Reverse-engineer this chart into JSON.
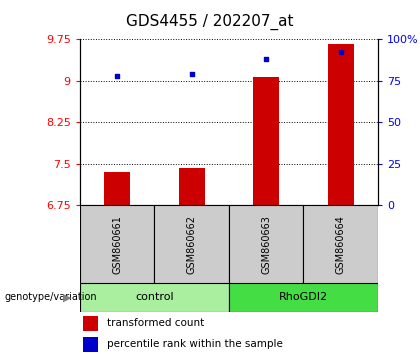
{
  "title": "GDS4455 / 202207_at",
  "samples": [
    "GSM860661",
    "GSM860662",
    "GSM860663",
    "GSM860664"
  ],
  "bar_values": [
    7.35,
    7.42,
    9.07,
    9.65
  ],
  "percentile_values": [
    78,
    79,
    88,
    92
  ],
  "ylim_left": [
    6.75,
    9.75
  ],
  "ylim_right": [
    0,
    100
  ],
  "yticks_left": [
    6.75,
    7.5,
    8.25,
    9.0,
    9.75
  ],
  "yticks_right": [
    0,
    25,
    50,
    75,
    100
  ],
  "ytick_labels_left": [
    "6.75",
    "7.5",
    "8.25",
    "9",
    "9.75"
  ],
  "ytick_labels_right": [
    "0",
    "25",
    "50",
    "75",
    "100%"
  ],
  "bar_color": "#cc0000",
  "dot_color": "#0000cc",
  "bar_width": 0.35,
  "sample_box_color": "#cccccc",
  "group_spans": [
    [
      0,
      1,
      "control",
      "#aaeea0"
    ],
    [
      2,
      3,
      "RhoGDI2",
      "#44dd44"
    ]
  ],
  "genotype_label": "genotype/variation",
  "legend_bar_label": "transformed count",
  "legend_dot_label": "percentile rank within the sample",
  "title_fontsize": 11,
  "axis_fontsize": 8,
  "tick_label_fontsize": 8
}
